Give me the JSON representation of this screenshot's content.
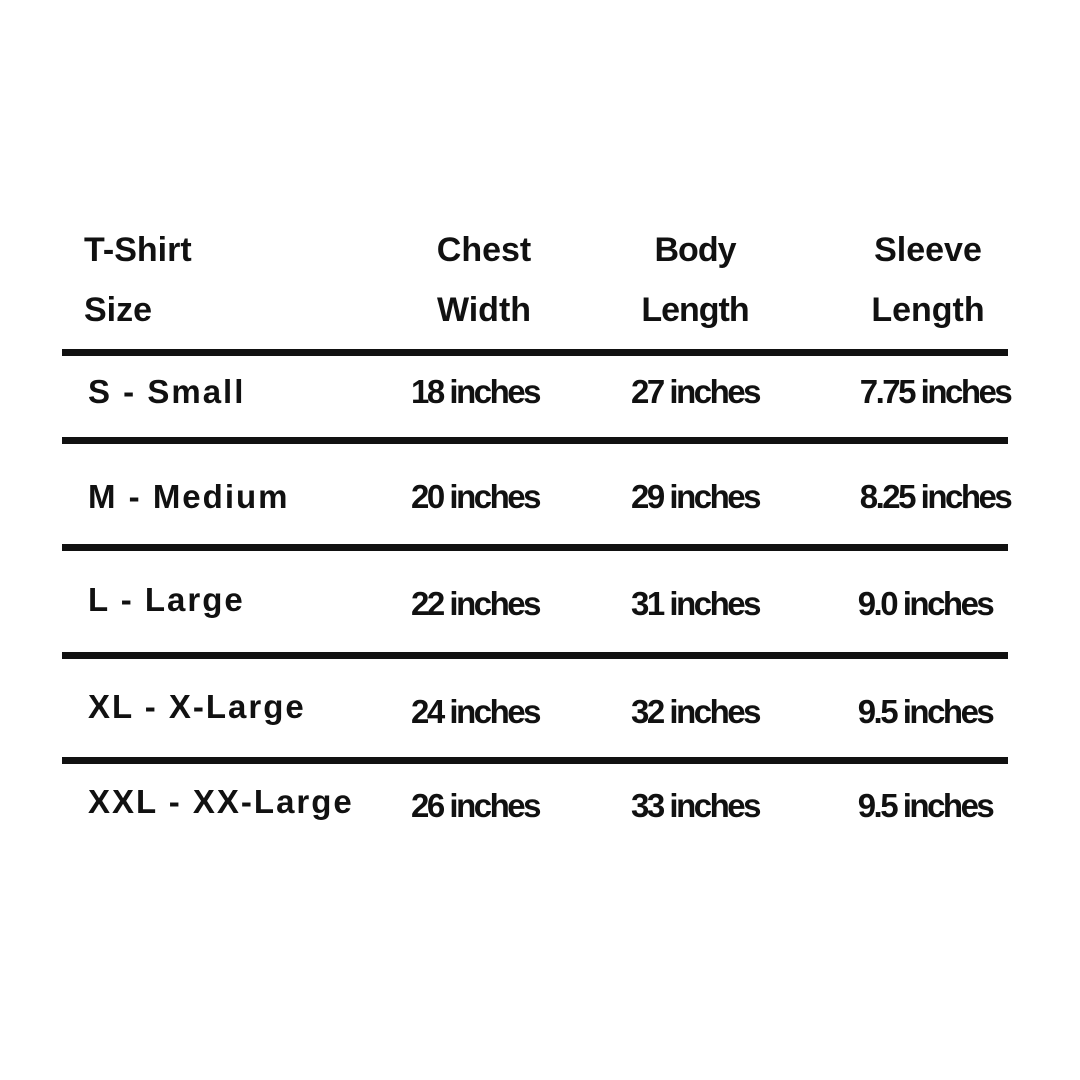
{
  "headers": [
    {
      "line1": "T-Shirt",
      "line2": "Size"
    },
    {
      "line1": "Chest",
      "line2": "Width"
    },
    {
      "line1": "Body",
      "line2": "Length"
    },
    {
      "line1": "Sleeve",
      "line2": "Length"
    }
  ],
  "rows": [
    {
      "size": "S - Small",
      "chest": "18 inches",
      "body": "27 inches",
      "sleeve": "7.75 inches"
    },
    {
      "size": "M - Medium",
      "chest": "20 inches",
      "body": "29 inches",
      "sleeve": "8.25 inches"
    },
    {
      "size": "L - Large",
      "chest": "22 inches",
      "body": "31 inches",
      "sleeve": "9.0 inches"
    },
    {
      "size": "XL - X-Large",
      "chest": "24 inches",
      "body": "32 inches",
      "sleeve": "9.5 inches"
    },
    {
      "size": "XXL - XX-Large",
      "chest": "26 inches",
      "body": "33 inches",
      "sleeve": "9.5 inches"
    }
  ]
}
